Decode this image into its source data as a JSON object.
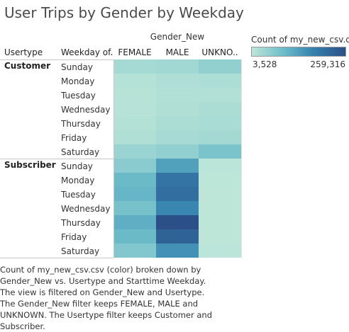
{
  "title": "User Trips by Gender by Weekday",
  "columns": {
    "group_header": "Gender_New",
    "usertype": "Usertype",
    "weekday": "Weekday of..",
    "genders": [
      "FEMALE",
      "MALE",
      "UNKNO.."
    ]
  },
  "legend": {
    "title": "Count of my_new_csv.c..",
    "min": "3,528",
    "max": "259,316",
    "color_low": "#bde6d8",
    "color_high": "#2b4f87"
  },
  "caption": "Count of my_new_csv.csv (color) broken down by Gender_New vs. Usertype and Starttime Weekday. The view is filtered on Gender_New and Usertype. The Gender_New filter keeps FEMALE, MALE and UNKNOWN. The Usertype filter keeps Customer and Subscriber.",
  "chart_data": {
    "type": "heatmap",
    "title": "User Trips by Gender by Weekday",
    "column_dimension": "Gender_New",
    "row_dimensions": [
      "Usertype",
      "Weekday of.."
    ],
    "columns": [
      "FEMALE",
      "MALE",
      "UNKNO.."
    ],
    "color_range": [
      3528,
      259316
    ],
    "groups": [
      {
        "name": "Customer",
        "rows": [
          {
            "label": "Sunday",
            "values": [
              30000,
              33000,
              50000
            ]
          },
          {
            "label": "Monday",
            "values": [
              12000,
              20000,
              21000
            ]
          },
          {
            "label": "Tuesday",
            "values": [
              10000,
              17000,
              17000
            ]
          },
          {
            "label": "Wednesday",
            "values": [
              11000,
              19000,
              22000
            ]
          },
          {
            "label": "Thursday",
            "values": [
              14000,
              22000,
              25000
            ]
          },
          {
            "label": "Friday",
            "values": [
              18000,
              28000,
              32000
            ]
          },
          {
            "label": "Saturday",
            "values": [
              42000,
              52000,
              75000
            ]
          }
        ]
      },
      {
        "name": "Subscriber",
        "rows": [
          {
            "label": "Sunday",
            "values": [
              60000,
              130000,
              6000
            ]
          },
          {
            "label": "Monday",
            "values": [
              95000,
              195000,
              4500
            ]
          },
          {
            "label": "Tuesday",
            "values": [
              100000,
              205000,
              4000
            ]
          },
          {
            "label": "Wednesday",
            "values": [
              80000,
              165000,
              4000
            ]
          },
          {
            "label": "Thursday",
            "values": [
              110000,
              259316,
              3528
            ]
          },
          {
            "label": "Friday",
            "values": [
              95000,
              225000,
              4000
            ]
          },
          {
            "label": "Saturday",
            "values": [
              68000,
              150000,
              5500
            ]
          }
        ]
      }
    ]
  }
}
